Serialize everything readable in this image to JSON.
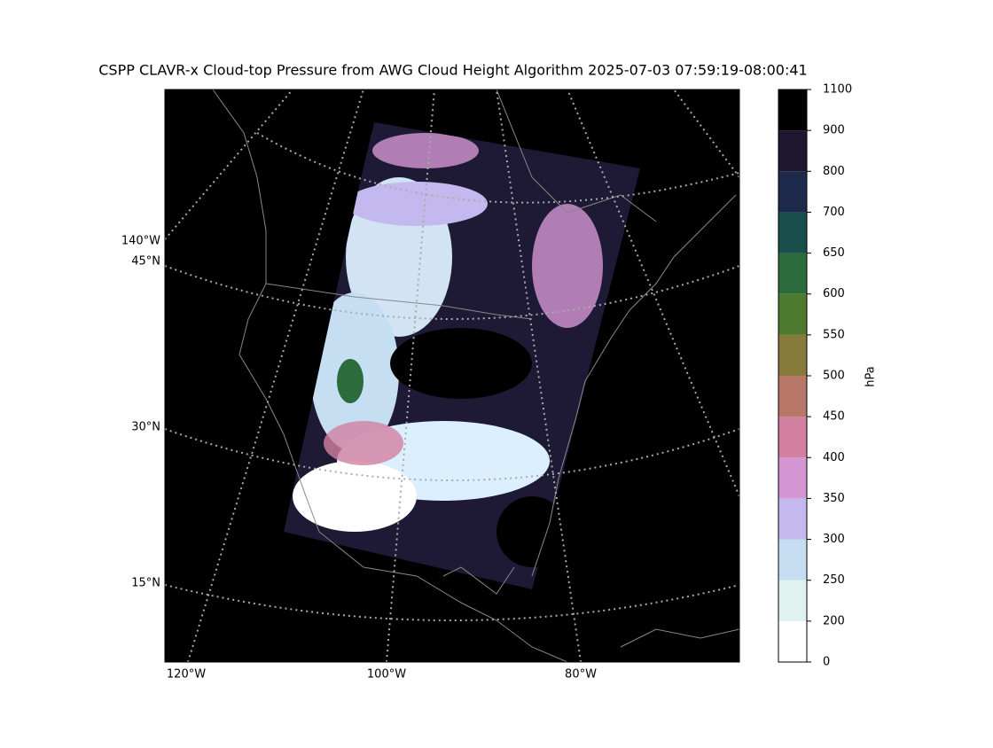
{
  "title": "CSPP CLAVR-x Cloud-top Pressure from AWG Cloud Height Algorithm 2025-07-03 07:59:19-08:00:41",
  "map": {
    "longitude_labels": [
      "140°W",
      "120°W",
      "100°W",
      "80°W"
    ],
    "latitude_labels": [
      "45°N",
      "30°N",
      "15°N"
    ]
  },
  "colorbar": {
    "label": "hPa",
    "ticks": [
      0,
      200,
      250,
      300,
      350,
      400,
      450,
      500,
      550,
      600,
      650,
      700,
      800,
      900,
      1100
    ],
    "colors": [
      "#ffffff",
      "#dff2ee",
      "#c6def2",
      "#c4b9ee",
      "#d497d4",
      "#d27fa0",
      "#b87868",
      "#887a3a",
      "#4e7a30",
      "#2b6b3c",
      "#1a4e4c",
      "#1d2a4c",
      "#1f1630",
      "#000000"
    ]
  }
}
